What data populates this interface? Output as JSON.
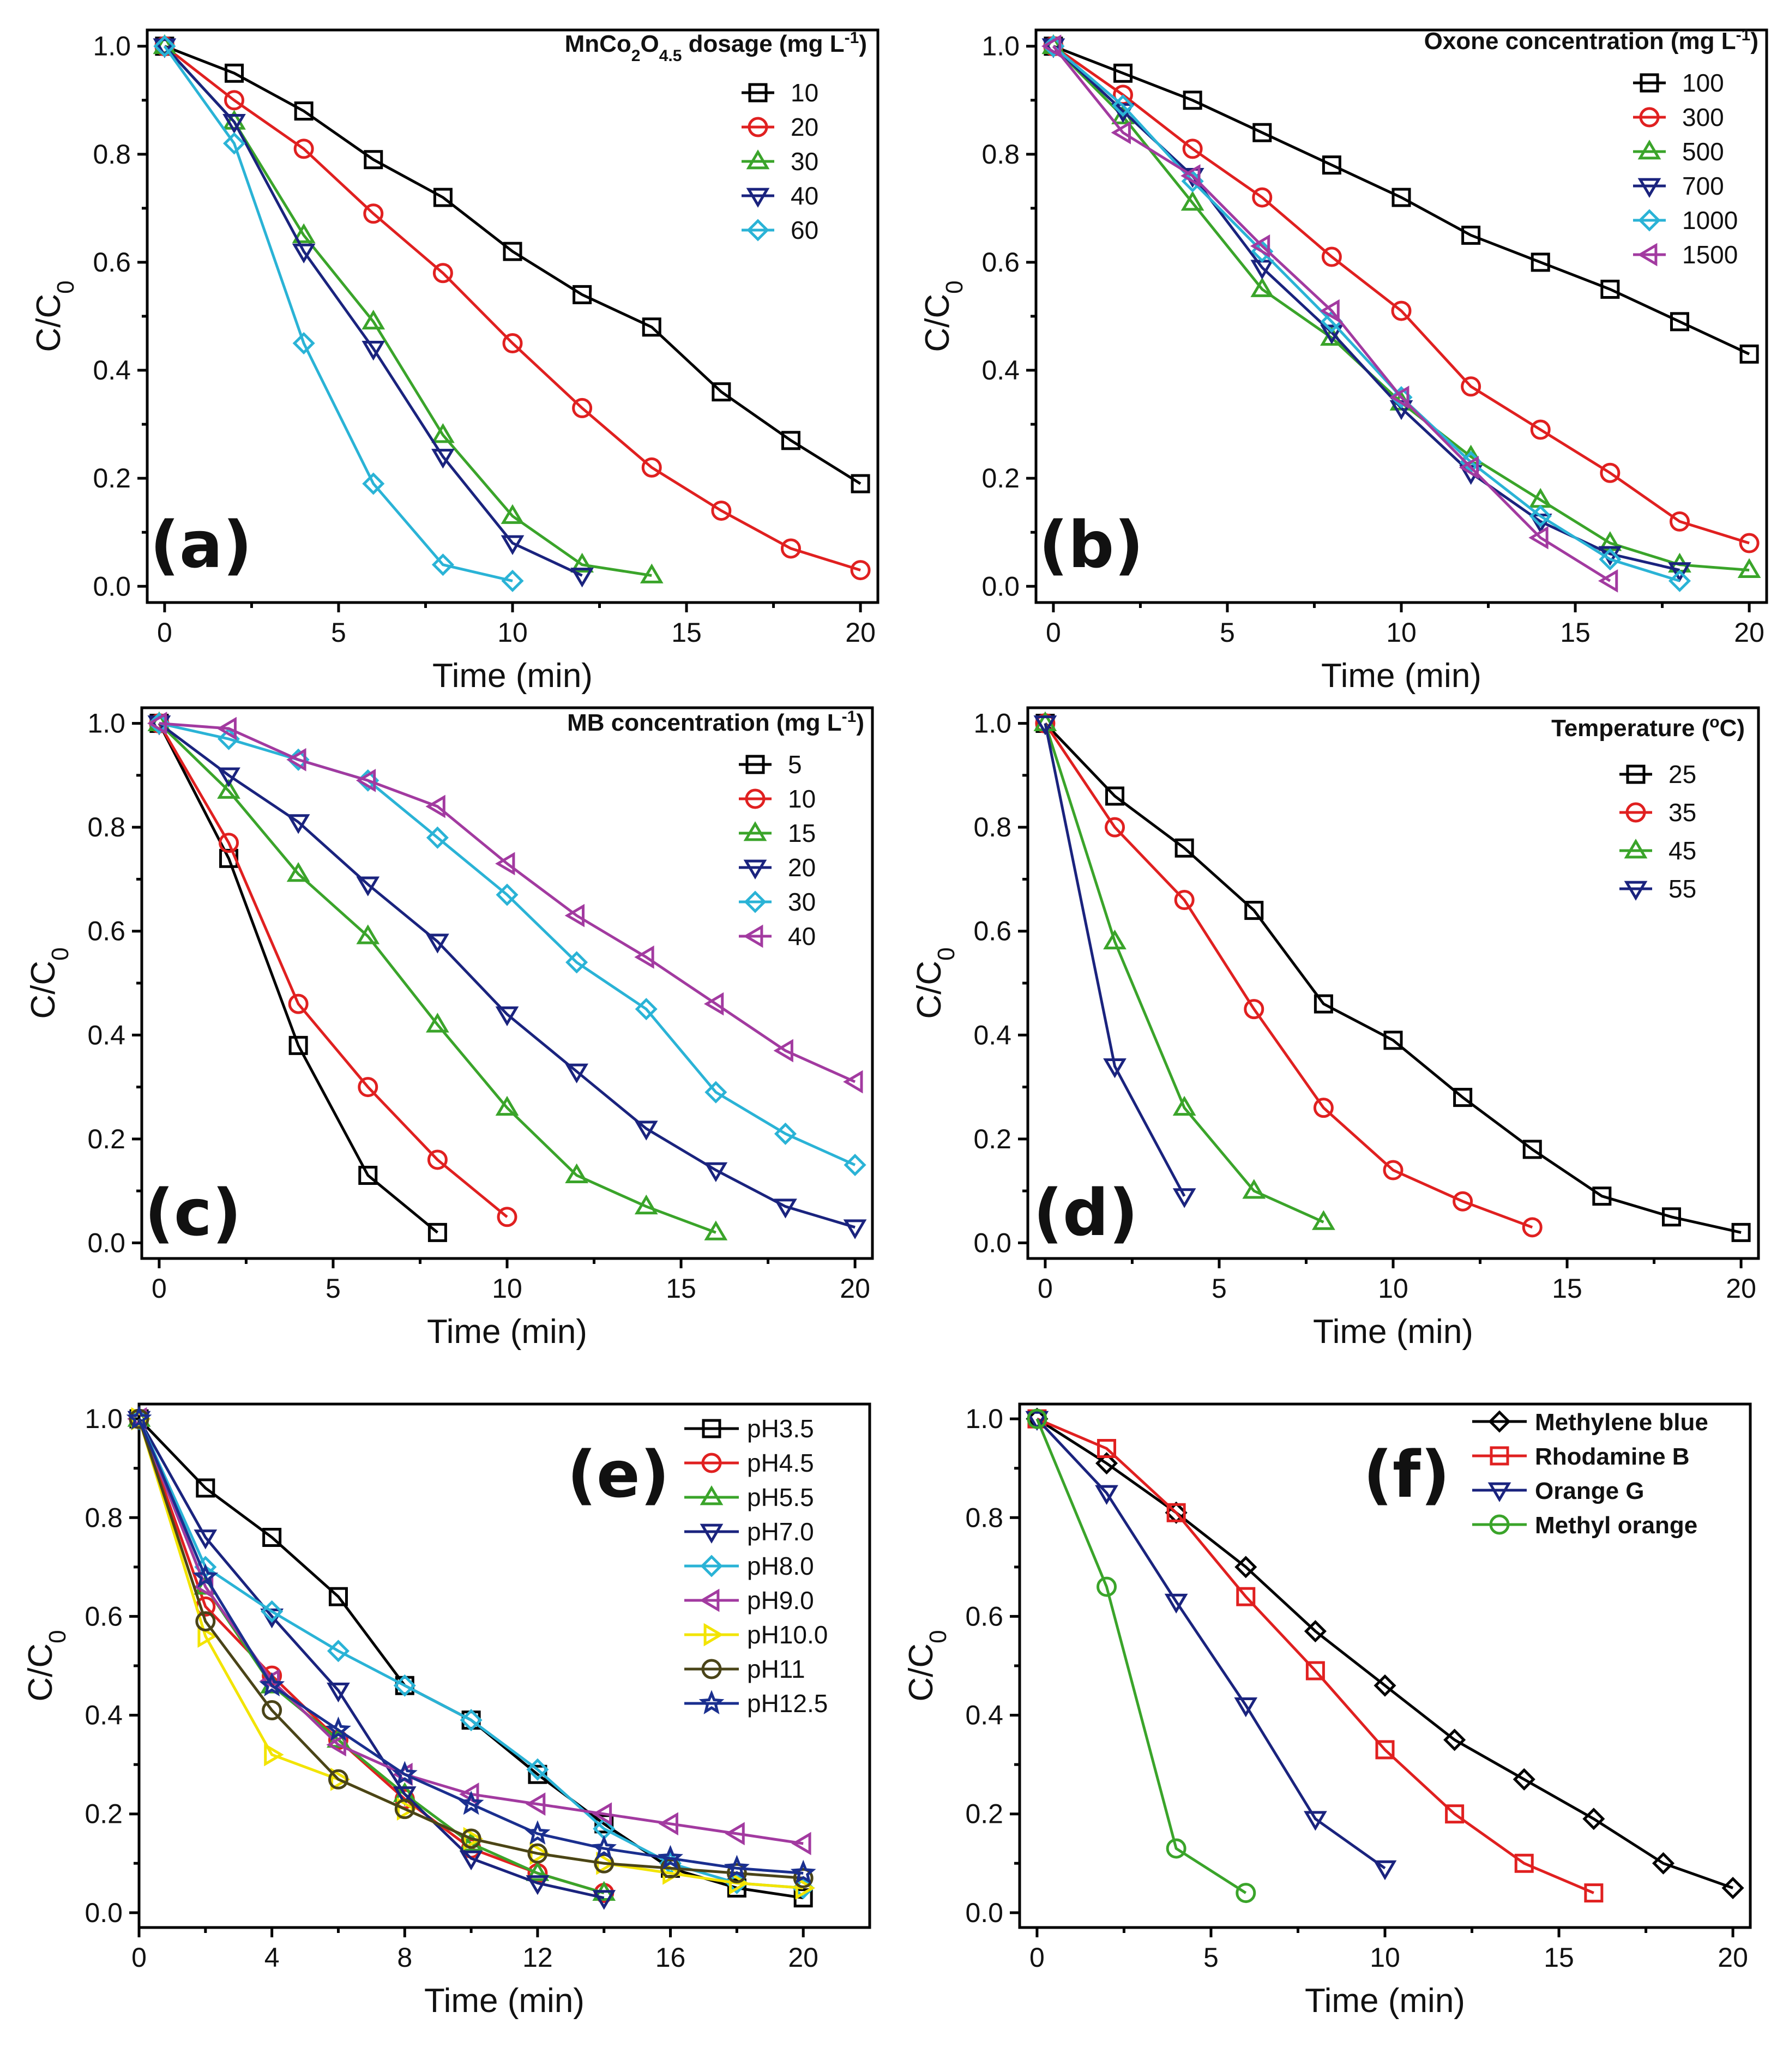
{
  "figure_title": "",
  "colors": {
    "black": "#000000",
    "red": "#e02020",
    "green": "#3aa42a",
    "navy": "#1a237e",
    "cyan": "#2ab3d6",
    "purple": "#a23aa0",
    "yellow": "#f2e400",
    "olive": "#4a4418",
    "blue": "#1a2f8f"
  },
  "chart_data": [
    {
      "type": "line",
      "panel": "(a)",
      "xlabel": "Time (min)",
      "ylabel": "C/C",
      "ylabel_sub": "0",
      "xlim": [
        -0.5,
        20.5
      ],
      "ylim": [
        -0.03,
        1.03
      ],
      "xticks": [
        0,
        5,
        10,
        15,
        20
      ],
      "yticks": [
        0.0,
        0.2,
        0.4,
        0.6,
        0.8,
        1.0
      ],
      "legend_title": "MnCo2O4.5 dosage (mg L-1)",
      "series": [
        {
          "name": "10",
          "color": "#000000",
          "marker": "square",
          "x": [
            0,
            2,
            4,
            6,
            8,
            10,
            12,
            14,
            16,
            18,
            20
          ],
          "y": [
            1.0,
            0.95,
            0.88,
            0.79,
            0.72,
            0.62,
            0.54,
            0.48,
            0.36,
            0.27,
            0.19
          ]
        },
        {
          "name": "20",
          "color": "#e02020",
          "marker": "circle",
          "x": [
            0,
            2,
            4,
            6,
            8,
            10,
            12,
            14,
            16,
            18,
            20
          ],
          "y": [
            1.0,
            0.9,
            0.81,
            0.69,
            0.58,
            0.45,
            0.33,
            0.22,
            0.14,
            0.07,
            0.03
          ]
        },
        {
          "name": "30",
          "color": "#3aa42a",
          "marker": "triangle-up",
          "x": [
            0,
            2,
            4,
            6,
            8,
            10,
            12,
            14
          ],
          "y": [
            1.0,
            0.86,
            0.65,
            0.49,
            0.28,
            0.13,
            0.04,
            0.02
          ]
        },
        {
          "name": "40",
          "color": "#1a237e",
          "marker": "triangle-down",
          "x": [
            0,
            2,
            4,
            6,
            8,
            10,
            12
          ],
          "y": [
            1.0,
            0.86,
            0.62,
            0.44,
            0.24,
            0.08,
            0.02
          ]
        },
        {
          "name": "60",
          "color": "#2ab3d6",
          "marker": "diamond",
          "x": [
            0,
            2,
            4,
            6,
            8,
            10
          ],
          "y": [
            1.0,
            0.82,
            0.45,
            0.19,
            0.04,
            0.01
          ]
        }
      ]
    },
    {
      "type": "line",
      "panel": "(b)",
      "xlabel": "Time (min)",
      "ylabel": "C/C",
      "ylabel_sub": "0",
      "xlim": [
        -0.5,
        20.5
      ],
      "ylim": [
        -0.03,
        1.03
      ],
      "xticks": [
        0,
        5,
        10,
        15,
        20
      ],
      "yticks": [
        0.0,
        0.2,
        0.4,
        0.6,
        0.8,
        1.0
      ],
      "legend_title": "Oxone concentration (mg L-1)",
      "series": [
        {
          "name": "100",
          "color": "#000000",
          "marker": "square",
          "x": [
            0,
            2,
            4,
            6,
            8,
            10,
            12,
            14,
            16,
            18,
            20
          ],
          "y": [
            1.0,
            0.95,
            0.9,
            0.84,
            0.78,
            0.72,
            0.65,
            0.6,
            0.55,
            0.49,
            0.43
          ]
        },
        {
          "name": "300",
          "color": "#e02020",
          "marker": "circle",
          "x": [
            0,
            2,
            4,
            6,
            8,
            10,
            12,
            14,
            16,
            18,
            20
          ],
          "y": [
            1.0,
            0.91,
            0.81,
            0.72,
            0.61,
            0.51,
            0.37,
            0.29,
            0.21,
            0.12,
            0.08
          ]
        },
        {
          "name": "500",
          "color": "#3aa42a",
          "marker": "triangle-up",
          "x": [
            0,
            2,
            4,
            6,
            8,
            10,
            12,
            14,
            16,
            18,
            20
          ],
          "y": [
            1.0,
            0.87,
            0.71,
            0.55,
            0.46,
            0.34,
            0.24,
            0.16,
            0.08,
            0.04,
            0.03
          ]
        },
        {
          "name": "700",
          "color": "#1a237e",
          "marker": "triangle-down",
          "x": [
            0,
            2,
            4,
            6,
            8,
            10,
            12,
            14,
            16,
            18
          ],
          "y": [
            1.0,
            0.88,
            0.76,
            0.59,
            0.47,
            0.33,
            0.21,
            0.12,
            0.06,
            0.03
          ]
        },
        {
          "name": "1000",
          "color": "#2ab3d6",
          "marker": "diamond",
          "x": [
            0,
            2,
            4,
            6,
            8,
            10,
            12,
            14,
            16,
            18
          ],
          "y": [
            1.0,
            0.89,
            0.75,
            0.62,
            0.49,
            0.35,
            0.23,
            0.13,
            0.05,
            0.01
          ]
        },
        {
          "name": "1500",
          "color": "#a23aa0",
          "marker": "triangle-left",
          "x": [
            0,
            2,
            4,
            6,
            8,
            10,
            12,
            14,
            16
          ],
          "y": [
            1.0,
            0.84,
            0.76,
            0.63,
            0.51,
            0.35,
            0.22,
            0.09,
            0.01
          ]
        }
      ]
    },
    {
      "type": "line",
      "panel": "(c)",
      "xlabel": "Time (min)",
      "ylabel": "C/C",
      "ylabel_sub": "0",
      "xlim": [
        -0.5,
        20.5
      ],
      "ylim": [
        -0.03,
        1.03
      ],
      "xticks": [
        0,
        5,
        10,
        15,
        20
      ],
      "yticks": [
        0.0,
        0.2,
        0.4,
        0.6,
        0.8,
        1.0
      ],
      "legend_title": "MB concentration (mg L-1)",
      "series": [
        {
          "name": "5",
          "color": "#000000",
          "marker": "square",
          "x": [
            0,
            2,
            4,
            6,
            8
          ],
          "y": [
            1.0,
            0.74,
            0.38,
            0.13,
            0.02
          ]
        },
        {
          "name": "10",
          "color": "#e02020",
          "marker": "circle",
          "x": [
            0,
            2,
            4,
            6,
            8,
            10
          ],
          "y": [
            1.0,
            0.77,
            0.46,
            0.3,
            0.16,
            0.05
          ]
        },
        {
          "name": "15",
          "color": "#3aa42a",
          "marker": "triangle-up",
          "x": [
            0,
            2,
            4,
            6,
            8,
            10,
            12,
            14,
            16
          ],
          "y": [
            1.0,
            0.87,
            0.71,
            0.59,
            0.42,
            0.26,
            0.13,
            0.07,
            0.02
          ]
        },
        {
          "name": "20",
          "color": "#1a237e",
          "marker": "triangle-down",
          "x": [
            0,
            2,
            4,
            6,
            8,
            10,
            12,
            14,
            16,
            18,
            20
          ],
          "y": [
            1.0,
            0.9,
            0.81,
            0.69,
            0.58,
            0.44,
            0.33,
            0.22,
            0.14,
            0.07,
            0.03
          ]
        },
        {
          "name": "30",
          "color": "#2ab3d6",
          "marker": "diamond",
          "x": [
            0,
            2,
            4,
            6,
            8,
            10,
            12,
            14,
            16,
            18,
            20
          ],
          "y": [
            1.0,
            0.97,
            0.93,
            0.89,
            0.78,
            0.67,
            0.54,
            0.45,
            0.29,
            0.21,
            0.15
          ]
        },
        {
          "name": "40",
          "color": "#a23aa0",
          "marker": "triangle-left",
          "x": [
            0,
            2,
            4,
            6,
            8,
            10,
            12,
            14,
            16,
            18,
            20
          ],
          "y": [
            1.0,
            0.99,
            0.93,
            0.89,
            0.84,
            0.73,
            0.63,
            0.55,
            0.46,
            0.37,
            0.31
          ]
        }
      ]
    },
    {
      "type": "line",
      "panel": "(d)",
      "xlabel": "Time (min)",
      "ylabel": "C/C",
      "ylabel_sub": "0",
      "xlim": [
        -0.5,
        20.5
      ],
      "ylim": [
        -0.03,
        1.03
      ],
      "xticks": [
        0,
        5,
        10,
        15,
        20
      ],
      "yticks": [
        0.0,
        0.2,
        0.4,
        0.6,
        0.8,
        1.0
      ],
      "legend_title": "Temperature (oC)",
      "series": [
        {
          "name": "25",
          "color": "#000000",
          "marker": "square",
          "x": [
            0,
            2,
            4,
            6,
            8,
            10,
            12,
            14,
            16,
            18,
            20
          ],
          "y": [
            1.0,
            0.86,
            0.76,
            0.64,
            0.46,
            0.39,
            0.28,
            0.18,
            0.09,
            0.05,
            0.02
          ]
        },
        {
          "name": "35",
          "color": "#e02020",
          "marker": "circle",
          "x": [
            0,
            2,
            4,
            6,
            8,
            10,
            12,
            14
          ],
          "y": [
            1.0,
            0.8,
            0.66,
            0.45,
            0.26,
            0.14,
            0.08,
            0.03
          ]
        },
        {
          "name": "45",
          "color": "#3aa42a",
          "marker": "triangle-up",
          "x": [
            0,
            2,
            4,
            6,
            8
          ],
          "y": [
            1.0,
            0.58,
            0.26,
            0.1,
            0.04
          ]
        },
        {
          "name": "55",
          "color": "#1a237e",
          "marker": "triangle-down",
          "x": [
            0,
            2,
            4
          ],
          "y": [
            1.0,
            0.34,
            0.09
          ]
        }
      ]
    },
    {
      "type": "line",
      "panel": "(e)",
      "xlabel": "Time (min)",
      "ylabel": "C/C",
      "ylabel_sub": "0",
      "xlim": [
        0,
        22
      ],
      "ylim": [
        -0.03,
        1.03
      ],
      "xticks": [
        0,
        4,
        8,
        12,
        16,
        20
      ],
      "yticks": [
        0.0,
        0.2,
        0.4,
        0.6,
        0.8,
        1.0
      ],
      "legend_title": "",
      "series": [
        {
          "name": "pH3.5",
          "color": "#000000",
          "marker": "square",
          "x": [
            0,
            2,
            4,
            6,
            8,
            10,
            12,
            14,
            16,
            18,
            20
          ],
          "y": [
            1.0,
            0.86,
            0.76,
            0.64,
            0.46,
            0.39,
            0.28,
            0.18,
            0.09,
            0.05,
            0.03
          ]
        },
        {
          "name": "pH4.5",
          "color": "#e02020",
          "marker": "circle",
          "x": [
            0,
            2,
            4,
            6,
            8,
            10,
            12,
            14
          ],
          "y": [
            1.0,
            0.62,
            0.48,
            0.35,
            0.23,
            0.13,
            0.08,
            0.04
          ]
        },
        {
          "name": "pH5.5",
          "color": "#3aa42a",
          "marker": "triangle-up",
          "x": [
            0,
            2,
            4,
            6,
            8,
            10,
            12,
            14
          ],
          "y": [
            1.0,
            0.66,
            0.46,
            0.35,
            0.24,
            0.14,
            0.08,
            0.04
          ]
        },
        {
          "name": "pH7.0",
          "color": "#1a237e",
          "marker": "triangle-down",
          "x": [
            0,
            2,
            4,
            6,
            8,
            10,
            12,
            14
          ],
          "y": [
            1.0,
            0.76,
            0.6,
            0.45,
            0.24,
            0.11,
            0.06,
            0.03
          ]
        },
        {
          "name": "pH8.0",
          "color": "#2ab3d6",
          "marker": "diamond",
          "x": [
            0,
            2,
            4,
            6,
            8,
            10,
            12,
            14,
            16,
            18,
            20
          ],
          "y": [
            1.0,
            0.7,
            0.61,
            0.53,
            0.46,
            0.39,
            0.29,
            0.17,
            0.1,
            0.06,
            0.05
          ]
        },
        {
          "name": "pH9.0",
          "color": "#a23aa0",
          "marker": "triangle-left",
          "x": [
            0,
            2,
            4,
            6,
            8,
            10,
            12,
            14,
            16,
            18,
            20
          ],
          "y": [
            1.0,
            0.66,
            0.47,
            0.34,
            0.28,
            0.24,
            0.22,
            0.2,
            0.18,
            0.16,
            0.14
          ]
        },
        {
          "name": "pH10.0",
          "color": "#f2e400",
          "marker": "triangle-right",
          "x": [
            0,
            2,
            4,
            6,
            8,
            10,
            12,
            14,
            16,
            18,
            20
          ],
          "y": [
            1.0,
            0.56,
            0.32,
            0.27,
            0.21,
            0.15,
            0.12,
            0.1,
            0.08,
            0.06,
            0.05
          ]
        },
        {
          "name": "pH11",
          "color": "#4a4418",
          "marker": "circle",
          "x": [
            0,
            2,
            4,
            6,
            8,
            10,
            12,
            14,
            16,
            18,
            20
          ],
          "y": [
            1.0,
            0.59,
            0.41,
            0.27,
            0.21,
            0.15,
            0.12,
            0.1,
            0.09,
            0.08,
            0.07
          ]
        },
        {
          "name": "pH12.5",
          "color": "#1a2f8f",
          "marker": "star",
          "x": [
            0,
            2,
            4,
            6,
            8,
            10,
            12,
            14,
            16,
            18,
            20
          ],
          "y": [
            1.0,
            0.68,
            0.46,
            0.37,
            0.28,
            0.22,
            0.16,
            0.13,
            0.11,
            0.09,
            0.08
          ]
        }
      ]
    },
    {
      "type": "line",
      "panel": "(f)",
      "xlabel": "Time (min)",
      "ylabel": "C/C",
      "ylabel_sub": "0",
      "xlim": [
        -0.5,
        20.5
      ],
      "ylim": [
        -0.03,
        1.03
      ],
      "xticks": [
        0,
        5,
        10,
        15,
        20
      ],
      "yticks": [
        0.0,
        0.2,
        0.4,
        0.6,
        0.8,
        1.0
      ],
      "legend_title": "",
      "series": [
        {
          "name": "Methylene blue",
          "color": "#000000",
          "marker": "diamond",
          "x": [
            0,
            2,
            4,
            6,
            8,
            10,
            12,
            14,
            16,
            18,
            20
          ],
          "y": [
            1.0,
            0.91,
            0.81,
            0.7,
            0.57,
            0.46,
            0.35,
            0.27,
            0.19,
            0.1,
            0.05
          ]
        },
        {
          "name": "Rhodamine B",
          "color": "#e02020",
          "marker": "square",
          "x": [
            0,
            2,
            4,
            6,
            8,
            10,
            12,
            14,
            16
          ],
          "y": [
            1.0,
            0.94,
            0.81,
            0.64,
            0.49,
            0.33,
            0.2,
            0.1,
            0.04
          ]
        },
        {
          "name": "Orange G",
          "color": "#1a237e",
          "marker": "triangle-down",
          "x": [
            0,
            2,
            4,
            6,
            8,
            10
          ],
          "y": [
            1.0,
            0.85,
            0.63,
            0.42,
            0.19,
            0.09
          ]
        },
        {
          "name": "Methyl orange",
          "color": "#3aa42a",
          "marker": "circle",
          "x": [
            0,
            2,
            4,
            6
          ],
          "y": [
            1.0,
            0.66,
            0.13,
            0.04
          ]
        }
      ]
    }
  ]
}
